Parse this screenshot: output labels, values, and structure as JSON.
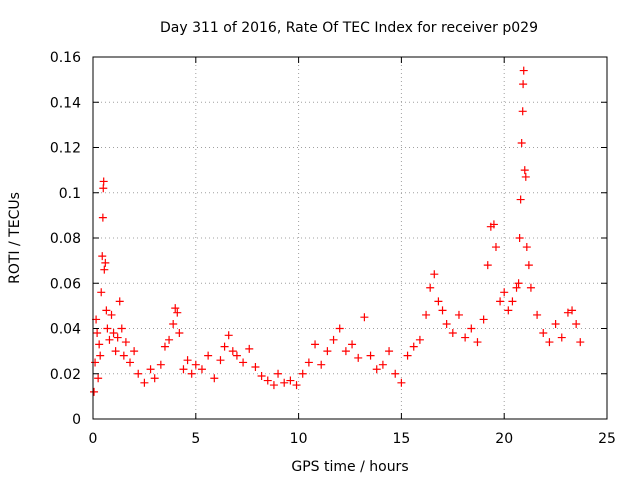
{
  "chart_data": {
    "type": "scatter",
    "title": "Day 311 of 2016, Rate Of TEC Index for receiver p029",
    "xlabel": "GPS time / hours",
    "ylabel": "ROTI / TECUs",
    "xlim": [
      0,
      25
    ],
    "ylim": [
      0,
      0.16
    ],
    "x_ticks": [
      {
        "value": 0,
        "label": "0"
      },
      {
        "value": 5,
        "label": "5"
      },
      {
        "value": 10,
        "label": "10"
      },
      {
        "value": 15,
        "label": "15"
      },
      {
        "value": 20,
        "label": "20"
      },
      {
        "value": 25,
        "label": "25"
      }
    ],
    "y_ticks": [
      {
        "value": 0,
        "label": "0"
      },
      {
        "value": 0.02,
        "label": "0.02"
      },
      {
        "value": 0.04,
        "label": "0.04"
      },
      {
        "value": 0.06,
        "label": "0.06"
      },
      {
        "value": 0.08,
        "label": "0.08"
      },
      {
        "value": 0.1,
        "label": "0.1"
      },
      {
        "value": 0.12,
        "label": "0.12"
      },
      {
        "value": 0.14,
        "label": "0.14"
      },
      {
        "value": 0.16,
        "label": "0.16"
      }
    ],
    "grid": true,
    "marker": "plus",
    "marker_color": "#ff0000",
    "series": [
      {
        "name": "p029",
        "points": [
          [
            0.05,
            0.012
          ],
          [
            0.1,
            0.025
          ],
          [
            0.15,
            0.044
          ],
          [
            0.2,
            0.038
          ],
          [
            0.25,
            0.018
          ],
          [
            0.3,
            0.033
          ],
          [
            0.35,
            0.028
          ],
          [
            0.4,
            0.056
          ],
          [
            0.45,
            0.072
          ],
          [
            0.48,
            0.089
          ],
          [
            0.5,
            0.102
          ],
          [
            0.52,
            0.105
          ],
          [
            0.55,
            0.066
          ],
          [
            0.6,
            0.069
          ],
          [
            0.65,
            0.048
          ],
          [
            0.7,
            0.04
          ],
          [
            0.8,
            0.035
          ],
          [
            0.9,
            0.046
          ],
          [
            1.0,
            0.038
          ],
          [
            1.1,
            0.03
          ],
          [
            1.2,
            0.036
          ],
          [
            1.3,
            0.052
          ],
          [
            1.4,
            0.04
          ],
          [
            1.5,
            0.028
          ],
          [
            1.6,
            0.034
          ],
          [
            1.8,
            0.025
          ],
          [
            2.0,
            0.03
          ],
          [
            2.2,
            0.02
          ],
          [
            2.5,
            0.016
          ],
          [
            2.8,
            0.022
          ],
          [
            3.0,
            0.018
          ],
          [
            3.3,
            0.024
          ],
          [
            3.5,
            0.032
          ],
          [
            3.7,
            0.035
          ],
          [
            3.9,
            0.042
          ],
          [
            4.0,
            0.049
          ],
          [
            4.1,
            0.047
          ],
          [
            4.2,
            0.038
          ],
          [
            4.4,
            0.022
          ],
          [
            4.6,
            0.026
          ],
          [
            4.8,
            0.02
          ],
          [
            5.0,
            0.024
          ],
          [
            5.3,
            0.022
          ],
          [
            5.6,
            0.028
          ],
          [
            5.9,
            0.018
          ],
          [
            6.2,
            0.026
          ],
          [
            6.4,
            0.032
          ],
          [
            6.6,
            0.037
          ],
          [
            6.8,
            0.03
          ],
          [
            7.0,
            0.028
          ],
          [
            7.3,
            0.025
          ],
          [
            7.6,
            0.031
          ],
          [
            7.9,
            0.023
          ],
          [
            8.2,
            0.019
          ],
          [
            8.5,
            0.017
          ],
          [
            8.8,
            0.015
          ],
          [
            9.0,
            0.02
          ],
          [
            9.3,
            0.016
          ],
          [
            9.6,
            0.017
          ],
          [
            9.9,
            0.015
          ],
          [
            10.2,
            0.02
          ],
          [
            10.5,
            0.025
          ],
          [
            10.8,
            0.033
          ],
          [
            11.1,
            0.024
          ],
          [
            11.4,
            0.03
          ],
          [
            11.7,
            0.035
          ],
          [
            12.0,
            0.04
          ],
          [
            12.3,
            0.03
          ],
          [
            12.6,
            0.033
          ],
          [
            12.9,
            0.027
          ],
          [
            13.2,
            0.045
          ],
          [
            13.5,
            0.028
          ],
          [
            13.8,
            0.022
          ],
          [
            14.1,
            0.024
          ],
          [
            14.4,
            0.03
          ],
          [
            14.7,
            0.02
          ],
          [
            15.0,
            0.016
          ],
          [
            15.3,
            0.028
          ],
          [
            15.6,
            0.032
          ],
          [
            15.9,
            0.035
          ],
          [
            16.2,
            0.046
          ],
          [
            16.4,
            0.058
          ],
          [
            16.6,
            0.064
          ],
          [
            16.8,
            0.052
          ],
          [
            17.0,
            0.048
          ],
          [
            17.2,
            0.042
          ],
          [
            17.5,
            0.038
          ],
          [
            17.8,
            0.046
          ],
          [
            18.1,
            0.036
          ],
          [
            18.4,
            0.04
          ],
          [
            18.7,
            0.034
          ],
          [
            19.0,
            0.044
          ],
          [
            19.2,
            0.068
          ],
          [
            19.35,
            0.085
          ],
          [
            19.5,
            0.086
          ],
          [
            19.6,
            0.076
          ],
          [
            19.8,
            0.052
          ],
          [
            20.0,
            0.056
          ],
          [
            20.2,
            0.048
          ],
          [
            20.4,
            0.052
          ],
          [
            20.6,
            0.058
          ],
          [
            20.7,
            0.06
          ],
          [
            20.75,
            0.08
          ],
          [
            20.8,
            0.097
          ],
          [
            20.85,
            0.122
          ],
          [
            20.9,
            0.136
          ],
          [
            20.92,
            0.148
          ],
          [
            20.95,
            0.154
          ],
          [
            21.0,
            0.11
          ],
          [
            21.05,
            0.107
          ],
          [
            21.1,
            0.076
          ],
          [
            21.2,
            0.068
          ],
          [
            21.3,
            0.058
          ],
          [
            21.6,
            0.046
          ],
          [
            21.9,
            0.038
          ],
          [
            22.2,
            0.034
          ],
          [
            22.5,
            0.042
          ],
          [
            22.8,
            0.036
          ],
          [
            23.1,
            0.047
          ],
          [
            23.3,
            0.048
          ],
          [
            23.5,
            0.042
          ],
          [
            23.7,
            0.034
          ]
        ]
      }
    ]
  }
}
